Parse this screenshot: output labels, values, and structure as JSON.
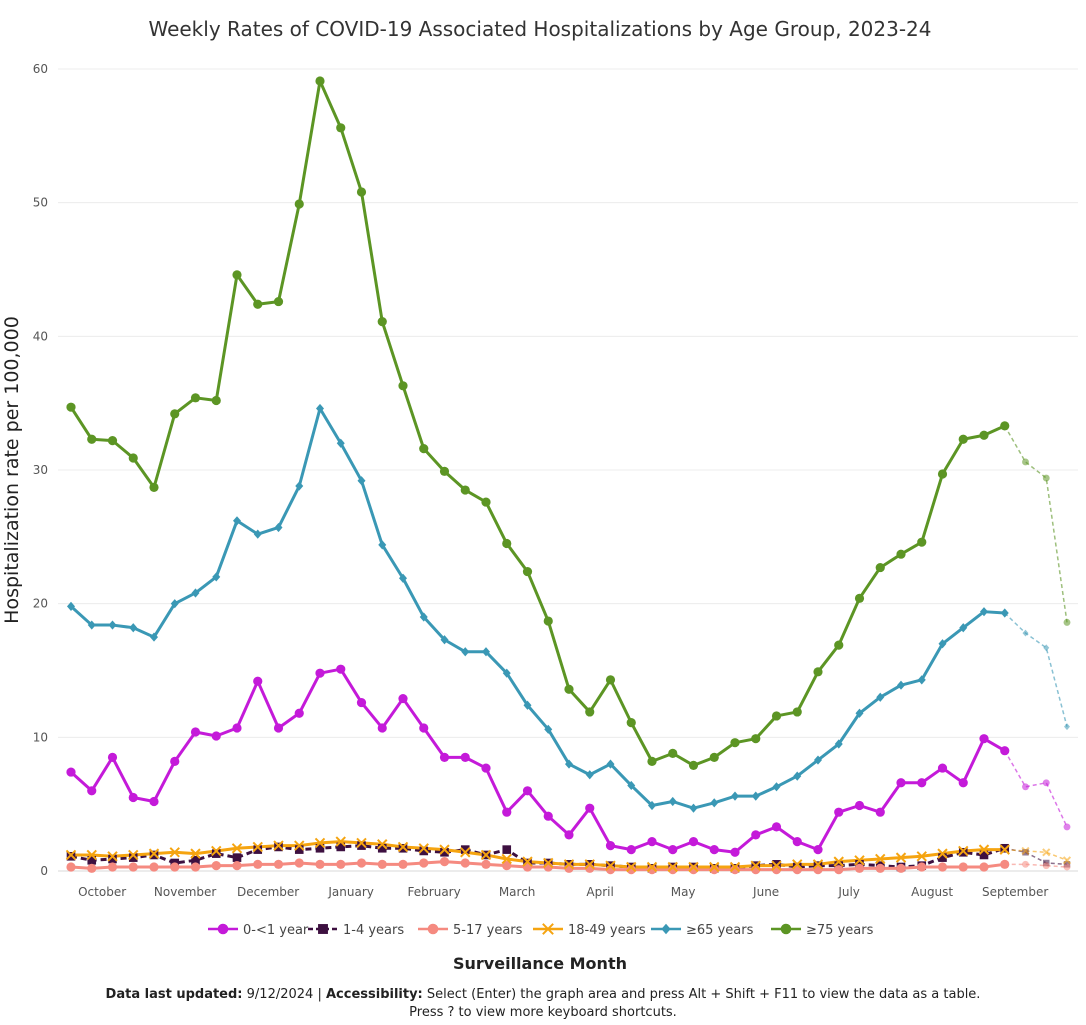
{
  "footer": {
    "updated_label": "Data last updated:",
    "updated_value": "9/12/2024 |",
    "access_label": "Accessibility:",
    "access_text": "Select (Enter) the graph area and press Alt + Shift + F11 to view the data as a table.",
    "shortcuts_text": "Press ? to view more keyboard shortcuts."
  },
  "chart_data": {
    "type": "line",
    "title": "Weekly Rates of COVID-19 Associated Hospitalizations by Age Group, 2023-24",
    "xlabel": "Surveillance Month",
    "ylabel": "Hospitalization rate per 100,000",
    "ylim": [
      0,
      60
    ],
    "yticks": [
      0,
      10,
      20,
      30,
      40,
      50,
      60
    ],
    "grid": true,
    "legend_position": "bottom",
    "x_week_labels": [
      "October",
      "November",
      "December",
      "January",
      "February",
      "March",
      "April",
      "May",
      "June",
      "July",
      "August",
      "September"
    ],
    "month_tick_week_index": [
      1.5,
      5.5,
      9.5,
      13.5,
      17.5,
      21.5,
      25.5,
      29.5,
      33.5,
      37.5,
      41.5,
      45.5
    ],
    "preliminary_start_index": 45,
    "series": [
      {
        "name": "0-<1 year",
        "color": "#c41ad9",
        "marker": "circle",
        "dash": "",
        "values": [
          7.4,
          6.0,
          8.5,
          5.5,
          5.2,
          8.2,
          10.4,
          10.1,
          10.7,
          14.2,
          10.7,
          11.8,
          14.8,
          15.1,
          12.6,
          10.7,
          12.9,
          10.7,
          8.5,
          8.5,
          7.7,
          4.4,
          6.0,
          4.1,
          2.7,
          4.7,
          1.9,
          1.6,
          2.2,
          1.6,
          2.2,
          1.6,
          1.4,
          2.7,
          3.3,
          2.2,
          1.6,
          4.4,
          4.9,
          4.4,
          6.6,
          6.6,
          7.7,
          6.6,
          9.9,
          9.0,
          6.3,
          6.6,
          3.3
        ]
      },
      {
        "name": "1-4 years",
        "color": "#3d1040",
        "marker": "square",
        "dash": "6,4",
        "values": [
          1.1,
          0.8,
          0.9,
          1.0,
          1.2,
          0.6,
          0.8,
          1.3,
          1.0,
          1.6,
          1.8,
          1.6,
          1.7,
          1.8,
          1.9,
          1.7,
          1.7,
          1.5,
          1.4,
          1.6,
          1.2,
          1.6,
          0.6,
          0.6,
          0.5,
          0.5,
          0.4,
          0.3,
          0.2,
          0.3,
          0.3,
          0.2,
          0.2,
          0.4,
          0.5,
          0.3,
          0.4,
          0.4,
          0.5,
          0.4,
          0.3,
          0.4,
          1.0,
          1.4,
          1.2,
          1.7,
          1.4,
          0.6,
          0.5
        ]
      },
      {
        "name": "5-17 years",
        "color": "#f58a80",
        "marker": "circle",
        "dash": "",
        "values": [
          0.3,
          0.2,
          0.3,
          0.3,
          0.3,
          0.3,
          0.3,
          0.4,
          0.4,
          0.5,
          0.5,
          0.6,
          0.5,
          0.5,
          0.6,
          0.5,
          0.5,
          0.6,
          0.7,
          0.6,
          0.5,
          0.4,
          0.3,
          0.3,
          0.2,
          0.2,
          0.1,
          0.1,
          0.1,
          0.1,
          0.1,
          0.1,
          0.1,
          0.1,
          0.1,
          0.1,
          0.1,
          0.1,
          0.2,
          0.2,
          0.2,
          0.3,
          0.3,
          0.3,
          0.3,
          0.5,
          0.5,
          0.4,
          0.3
        ]
      },
      {
        "name": "18-49 years",
        "color": "#f5a410",
        "marker": "x",
        "dash": "",
        "values": [
          1.2,
          1.2,
          1.1,
          1.2,
          1.3,
          1.4,
          1.3,
          1.5,
          1.7,
          1.8,
          1.9,
          1.9,
          2.1,
          2.2,
          2.1,
          2.0,
          1.8,
          1.7,
          1.6,
          1.4,
          1.2,
          0.9,
          0.7,
          0.6,
          0.5,
          0.5,
          0.4,
          0.3,
          0.3,
          0.3,
          0.3,
          0.3,
          0.3,
          0.4,
          0.4,
          0.5,
          0.5,
          0.7,
          0.8,
          0.9,
          1.0,
          1.1,
          1.3,
          1.5,
          1.6,
          1.6,
          1.5,
          1.4,
          0.8
        ]
      },
      {
        "name": "≥65 years",
        "color": "#3a98b5",
        "marker": "diamond",
        "dash": "",
        "values": [
          19.8,
          18.4,
          18.4,
          18.2,
          17.5,
          20.0,
          20.8,
          22.0,
          26.2,
          25.2,
          25.7,
          28.8,
          34.6,
          32.0,
          29.2,
          24.4,
          21.9,
          19.0,
          17.3,
          16.4,
          16.4,
          14.8,
          12.4,
          10.6,
          8.0,
          7.2,
          8.0,
          6.4,
          4.9,
          5.2,
          4.7,
          5.1,
          5.6,
          5.6,
          6.3,
          7.1,
          8.3,
          9.5,
          11.8,
          13.0,
          13.9,
          14.3,
          17.0,
          18.2,
          19.4,
          19.3,
          17.8,
          16.7,
          10.8
        ]
      },
      {
        "name": "≥75 years",
        "color": "#5c9524",
        "marker": "circle",
        "dash": "",
        "values": [
          34.7,
          32.3,
          32.2,
          30.9,
          28.7,
          34.2,
          35.4,
          35.2,
          44.6,
          42.4,
          42.6,
          49.9,
          59.1,
          55.6,
          50.8,
          41.1,
          36.3,
          31.6,
          29.9,
          28.5,
          27.6,
          24.5,
          22.4,
          18.7,
          13.6,
          11.9,
          14.3,
          11.1,
          8.2,
          8.8,
          7.9,
          8.5,
          9.6,
          9.9,
          11.6,
          11.9,
          14.9,
          16.9,
          20.4,
          22.7,
          23.7,
          24.6,
          29.7,
          32.3,
          32.6,
          33.3,
          30.6,
          29.4,
          18.6
        ]
      }
    ]
  }
}
